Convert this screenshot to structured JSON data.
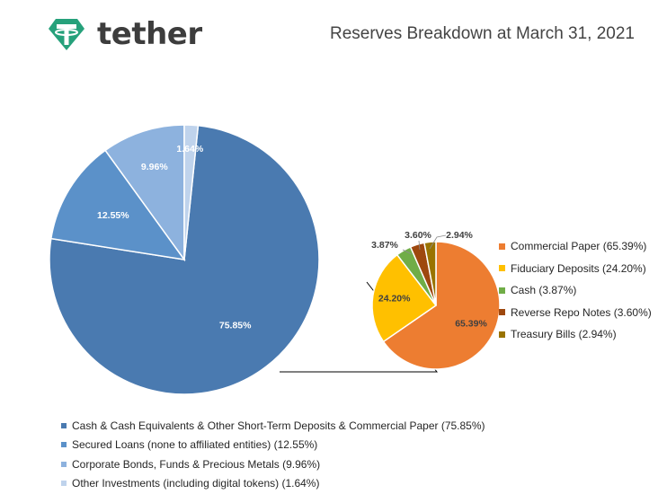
{
  "brand": {
    "name": "tether",
    "color": "#26a17b"
  },
  "report_title": "Reserves Breakdown at March 31, 2021",
  "chart_data": [
    {
      "type": "pie",
      "title": "",
      "categories": [
        "Cash & Cash Equivalents & Other Short-Term Deposits & Commercial Paper (75.85%)",
        "Secured Loans (none to affiliated entities) (12.55%)",
        "Corporate Bonds, Funds & Precious Metals (9.96%)",
        "Other Investments (including digital tokens) (1.64%)"
      ],
      "values": [
        75.85,
        12.55,
        9.96,
        1.64
      ],
      "data_labels": [
        "75.85%",
        "12.55%",
        "9.96%",
        "1.64%"
      ],
      "colors": [
        "#4a7ab0",
        "#5b91c9",
        "#8db2de",
        "#bfd3ec"
      ],
      "legend_position": "bottom"
    },
    {
      "type": "pie",
      "title": "",
      "categories": [
        "Commercial Paper (65.39%)",
        "Fiduciary Deposits (24.20%)",
        "Cash (3.87%)",
        "Reverse Repo Notes (3.60%)",
        "Treasury Bills (2.94%)"
      ],
      "values": [
        65.39,
        24.2,
        3.87,
        3.6,
        2.94
      ],
      "data_labels": [
        "65.39%",
        "24.20%",
        "3.87%",
        "3.60%",
        "2.94%"
      ],
      "colors": [
        "#ed7d31",
        "#ffc000",
        "#70ad47",
        "#9e480e",
        "#997300"
      ],
      "legend_position": "right"
    }
  ]
}
